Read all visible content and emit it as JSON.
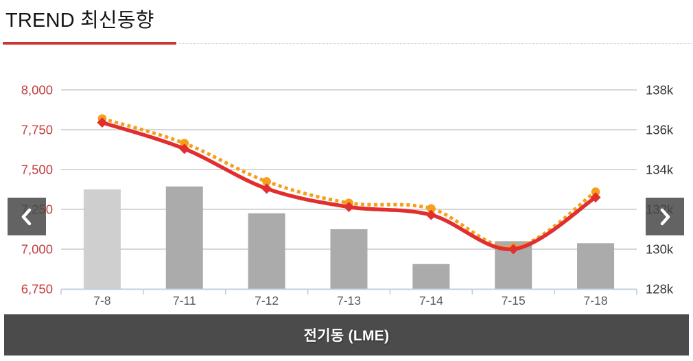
{
  "header": {
    "title": "TREND 최신동향"
  },
  "nav": {
    "prev_icon": "chevron-left",
    "next_icon": "chevron-right"
  },
  "footer": {
    "caption": "전기동 (LME)"
  },
  "colors": {
    "accent_red": "#cc3536",
    "line_red": "#e12f2f",
    "line_orange": "#f79e1b",
    "bar_gray": "#ababab",
    "bar_gray_light": "#cfcfcf",
    "gridline": "#cacaca",
    "axis_line": "#c3cfdb",
    "left_axis_text": "#c43c3c",
    "right_axis_text": "#333333",
    "x_axis_text": "#595959",
    "caption_bg": "#4b4b4b",
    "caption_text": "#ffffff",
    "nav_btn_bg": "rgba(72,72,72,0.85)"
  },
  "chart_data": {
    "type": "combo",
    "title": "전기동 (LME)",
    "categories": [
      "7-8",
      "7-11",
      "7-12",
      "7-13",
      "7-14",
      "7-15",
      "7-18"
    ],
    "series": [
      {
        "name": "inventory-bars",
        "type": "bar",
        "axis": "right",
        "values": [
          133000,
          133150,
          131800,
          131000,
          129250,
          130400,
          130300
        ],
        "bar_colors": [
          "#cfcfcf",
          "#ababab",
          "#ababab",
          "#ababab",
          "#ababab",
          "#ababab",
          "#ababab"
        ]
      },
      {
        "name": "price-line-dotted-orange",
        "type": "line",
        "style": "dotted",
        "marker": "circle",
        "axis": "left",
        "color": "#f79e1b",
        "values": [
          7820,
          7665,
          7425,
          7290,
          7255,
          7010,
          7360
        ]
      },
      {
        "name": "price-line-solid-red",
        "type": "line",
        "style": "solid",
        "marker": "diamond",
        "axis": "left",
        "color": "#e12f2f",
        "values": [
          7795,
          7630,
          7380,
          7265,
          7215,
          7000,
          7325
        ]
      }
    ],
    "left_axis": {
      "min": 6750,
      "max": 8000,
      "ticks": [
        {
          "value": 8000,
          "label": "8,000"
        },
        {
          "value": 7750,
          "label": "7,750"
        },
        {
          "value": 7500,
          "label": "7,500"
        },
        {
          "value": 7250,
          "label": "7,250"
        },
        {
          "value": 7000,
          "label": "7,000"
        },
        {
          "value": 6750,
          "label": "6,750"
        }
      ]
    },
    "right_axis": {
      "min": 128000,
      "max": 138000,
      "ticks": [
        {
          "value": 138000,
          "label": "138k"
        },
        {
          "value": 136000,
          "label": "136k"
        },
        {
          "value": 134000,
          "label": "134k"
        },
        {
          "value": 132000,
          "label": "132k"
        },
        {
          "value": 130000,
          "label": "130k"
        },
        {
          "value": 128000,
          "label": "128k"
        }
      ]
    },
    "grid": true,
    "legend": "none"
  }
}
